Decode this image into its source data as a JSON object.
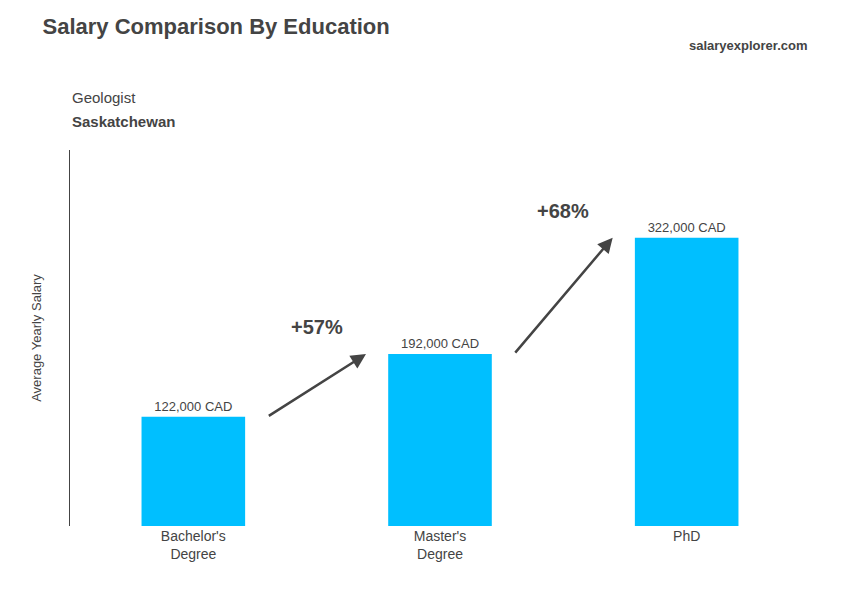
{
  "chart_data": {
    "type": "bar",
    "title": "Salary Comparison By Education",
    "subtitle": [
      "Geologist",
      "Saskatchewan"
    ],
    "source": "salaryexplorer.com",
    "ylabel": "Average Yearly Salary",
    "categories": [
      "Bachelor's\nDegree",
      "Master's\nDegree",
      "PhD"
    ],
    "values": [
      122000,
      192000,
      322000
    ],
    "value_labels": [
      "122,000 CAD",
      "192,000 CAD",
      "322,000 CAD"
    ],
    "data_labels": true,
    "color": "#00BFFF",
    "ylim": [
      0,
      420000
    ],
    "tick_labels": "x",
    "grid": false,
    "annotations": [
      "+57%",
      "+68%"
    ]
  }
}
